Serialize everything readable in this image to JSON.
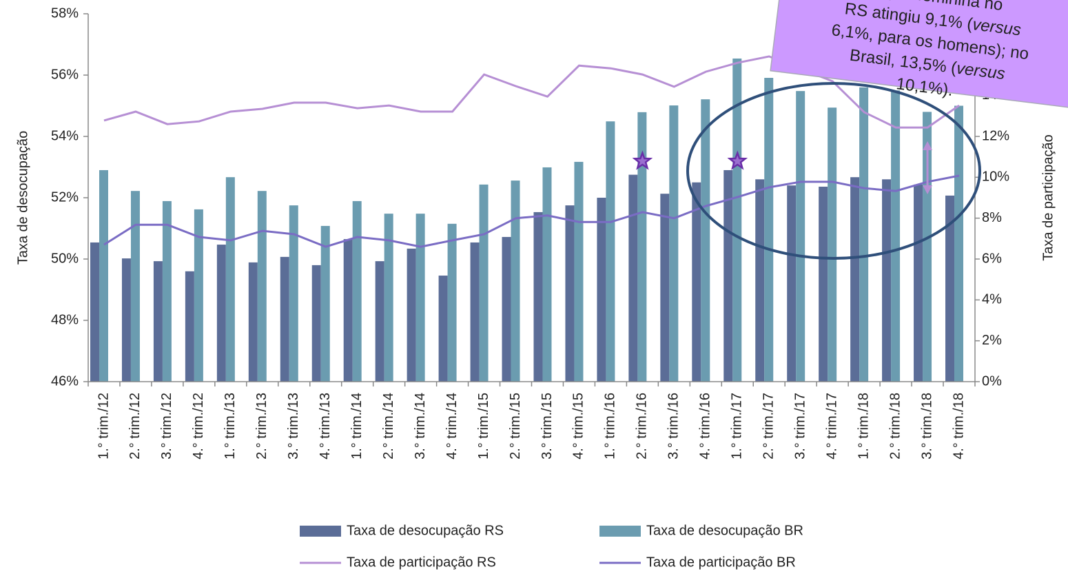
{
  "chart_data": {
    "type": "bar",
    "categories": [
      "1.° trim./12",
      "2.° trim./12",
      "3.° trim./12",
      "4.° trim./12",
      "1.° trim./13",
      "2.° trim./13",
      "3.° trim./13",
      "4.° trim./13",
      "1.° trim./14",
      "2.° trim./14",
      "3.° trim./14",
      "4.° trim./14",
      "1.° trim./15",
      "2.° trim./15",
      "3.° trim./15",
      "4.° trim./15",
      "1.° trim./16",
      "2.° trim./16",
      "3.° trim./16",
      "4.° trim./16",
      "1.° trim./17",
      "2.° trim./17",
      "3.° trim./17",
      "4.° trim./17",
      "1.° trim./18",
      "2.° trim./18",
      "3.° trim./18",
      "4.° trim./18"
    ],
    "series": [
      {
        "name": "Taxa de desocupação RS",
        "type": "bar",
        "color": "#5b6d97",
        "values": [
          50.54,
          50.02,
          49.93,
          49.6,
          50.47,
          49.89,
          50.07,
          49.8,
          50.65,
          49.93,
          50.34,
          49.46,
          50.54,
          50.72,
          51.53,
          51.75,
          52.0,
          52.75,
          52.13,
          52.5,
          52.9,
          52.6,
          52.4,
          52.36,
          52.67,
          52.6,
          52.43,
          52.07
        ]
      },
      {
        "name": "Taxa de desocupação BR",
        "type": "bar",
        "color": "#6b9cb0",
        "values": [
          52.9,
          52.22,
          51.89,
          51.62,
          52.67,
          52.22,
          51.75,
          51.08,
          51.89,
          51.48,
          51.48,
          51.15,
          52.43,
          52.56,
          52.99,
          53.17,
          54.49,
          54.79,
          55.01,
          55.21,
          56.54,
          55.91,
          55.48,
          54.94,
          55.6,
          55.5,
          54.8,
          55.0
        ]
      },
      {
        "name": "Taxa de participação RS",
        "type": "line",
        "color": "#b68fd4",
        "values": [
          54.52,
          54.81,
          54.4,
          54.49,
          54.81,
          54.9,
          55.1,
          55.1,
          54.92,
          55.01,
          54.81,
          54.81,
          56.02,
          55.64,
          55.3,
          56.31,
          56.22,
          56.02,
          55.62,
          56.11,
          56.4,
          56.61,
          56.2,
          55.8,
          54.79,
          54.29,
          54.29,
          55.01
        ]
      },
      {
        "name": "Taxa de participação BR",
        "type": "line",
        "color": "#7a6cc4",
        "values": [
          50.47,
          51.12,
          51.12,
          50.72,
          50.61,
          50.92,
          50.81,
          50.4,
          50.72,
          50.61,
          50.4,
          50.61,
          50.81,
          51.33,
          51.42,
          51.21,
          51.21,
          51.53,
          51.33,
          51.73,
          52.02,
          52.34,
          52.52,
          52.52,
          52.31,
          52.22,
          52.52,
          52.72
        ]
      }
    ],
    "ylabel": "Taxa de desocupação",
    "y2label": "Taxa de participação",
    "ylim": [
      46,
      58
    ],
    "yticks": [
      {
        "value": 46,
        "label": "46%"
      },
      {
        "value": 48,
        "label": "48%"
      },
      {
        "value": 50,
        "label": "50%"
      },
      {
        "value": 52,
        "label": "52%"
      },
      {
        "value": 54,
        "label": "54%"
      },
      {
        "value": 56,
        "label": "56%"
      },
      {
        "value": 58,
        "label": "58%"
      }
    ],
    "y2lim": [
      0,
      18
    ],
    "y2ticks": [
      {
        "value": 0,
        "label": "0%"
      },
      {
        "value": 2,
        "label": "2%"
      },
      {
        "value": 4,
        "label": "4%"
      },
      {
        "value": 6,
        "label": "6%"
      },
      {
        "value": 8,
        "label": "8%"
      },
      {
        "value": 10,
        "label": "10%"
      },
      {
        "value": 12,
        "label": "12%"
      },
      {
        "value": 14,
        "label": "14%"
      }
    ],
    "annotation": [
      [
        {
          "t": "pação feminina no",
          "i": false
        }
      ],
      [
        {
          "t": "RS atingiu 9,1% (",
          "i": false
        },
        {
          "t": "versus",
          "i": true
        }
      ],
      [
        {
          "t": "6,1%, para os homens); no",
          "i": false
        }
      ],
      [
        {
          "t": "Brasil, 13,5% (",
          "i": false
        },
        {
          "t": "versus",
          "i": true
        }
      ],
      [
        {
          "t": "10,1%).",
          "i": false
        }
      ]
    ]
  }
}
